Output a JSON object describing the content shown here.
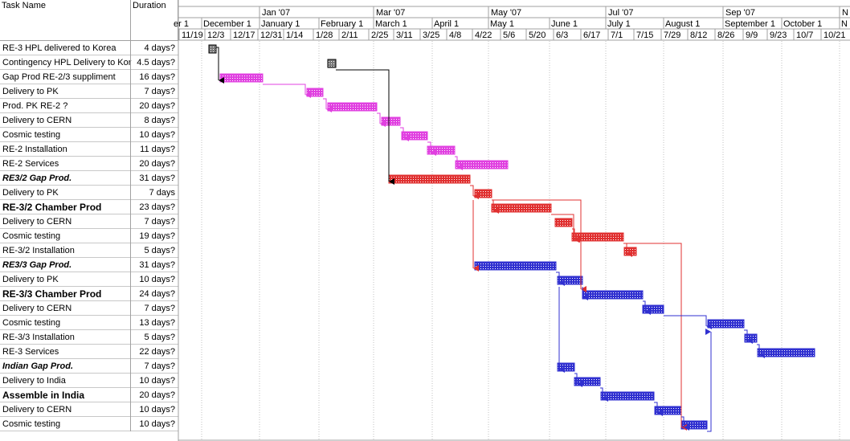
{
  "columns": {
    "task_name": "Task Name",
    "duration": "Duration"
  },
  "timescale": {
    "major": [
      "Jan '07",
      "Mar '07",
      "May '07",
      "Jul '07",
      "Sep '07",
      "N"
    ],
    "middle": [
      "er 1",
      "December 1",
      "January 1",
      "February 1",
      "March 1",
      "April 1",
      "May 1",
      "June 1",
      "July 1",
      "August 1",
      "September 1",
      "October 1",
      "N"
    ],
    "minor": [
      "11/19",
      "12/3",
      "12/17",
      "12/31",
      "1/14",
      "1/28",
      "2/11",
      "2/25",
      "3/11",
      "3/25",
      "4/8",
      "4/22",
      "5/6",
      "5/20",
      "6/3",
      "6/17",
      "7/1",
      "7/15",
      "7/29",
      "8/12",
      "8/26",
      "9/9",
      "9/23",
      "10/7",
      "10/21"
    ]
  },
  "tasks": [
    {
      "name": "RE-3 HPL delivered to Korea",
      "duration": "4 days?",
      "style": "normal"
    },
    {
      "name": "Contingency HPL Delivery to Kor",
      "duration": "4.5 days?",
      "style": "normal"
    },
    {
      "name": "Gap Prod RE-2/3 suppliment",
      "duration": "16 days?",
      "style": "normal"
    },
    {
      "name": "Delivery to PK",
      "duration": "7 days?",
      "style": "normal"
    },
    {
      "name": "Prod. PK RE-2 ?",
      "duration": "20 days?",
      "style": "normal"
    },
    {
      "name": "Delivery to CERN",
      "duration": "8 days?",
      "style": "normal"
    },
    {
      "name": "Cosmic testing",
      "duration": "10 days?",
      "style": "normal"
    },
    {
      "name": "RE-2 Installation",
      "duration": "11 days?",
      "style": "normal"
    },
    {
      "name": "RE-2 Services",
      "duration": "20 days?",
      "style": "normal"
    },
    {
      "name": "RE3/2 Gap Prod.",
      "duration": "31 days?",
      "style": "bolditalic"
    },
    {
      "name": "Delivery to PK",
      "duration": "7 days",
      "style": "normal"
    },
    {
      "name": "RE-3/2 Chamber Prod",
      "duration": "23 days?",
      "style": "bold"
    },
    {
      "name": "Delivery to CERN",
      "duration": "7 days?",
      "style": "normal"
    },
    {
      "name": "Cosmic testing",
      "duration": "19 days?",
      "style": "normal"
    },
    {
      "name": "RE-3/2 Installation",
      "duration": "5 days?",
      "style": "normal"
    },
    {
      "name": "RE3/3 Gap Prod.",
      "duration": "31 days?",
      "style": "bolditalic"
    },
    {
      "name": "Delivery to PK",
      "duration": "10 days?",
      "style": "normal"
    },
    {
      "name": "RE-3/3 Chamber Prod",
      "duration": "24 days?",
      "style": "bold"
    },
    {
      "name": "Delivery to CERN",
      "duration": "7 days?",
      "style": "normal"
    },
    {
      "name": "Cosmic testing",
      "duration": "13 days?",
      "style": "normal"
    },
    {
      "name": "RE-3/3 Installation",
      "duration": "5 days?",
      "style": "normal"
    },
    {
      "name": "RE-3 Services",
      "duration": "22 days?",
      "style": "normal"
    },
    {
      "name": "Indian Gap Prod.",
      "duration": "7 days?",
      "style": "bolditalic"
    },
    {
      "name": "Delivery to India",
      "duration": "10 days?",
      "style": "normal"
    },
    {
      "name": "Assemble in  India",
      "duration": "20 days?",
      "style": "bold"
    },
    {
      "name": "Delivery to CERN",
      "duration": "10 days?",
      "style": "normal"
    },
    {
      "name": "Cosmic testing",
      "duration": "10 days?",
      "style": "normal"
    }
  ],
  "colors": {
    "gray": "#7a7a7a",
    "magenta": "#e040e0",
    "red": "#e03030",
    "blue": "#3030d0",
    "grid": "#a0a0a0"
  }
}
